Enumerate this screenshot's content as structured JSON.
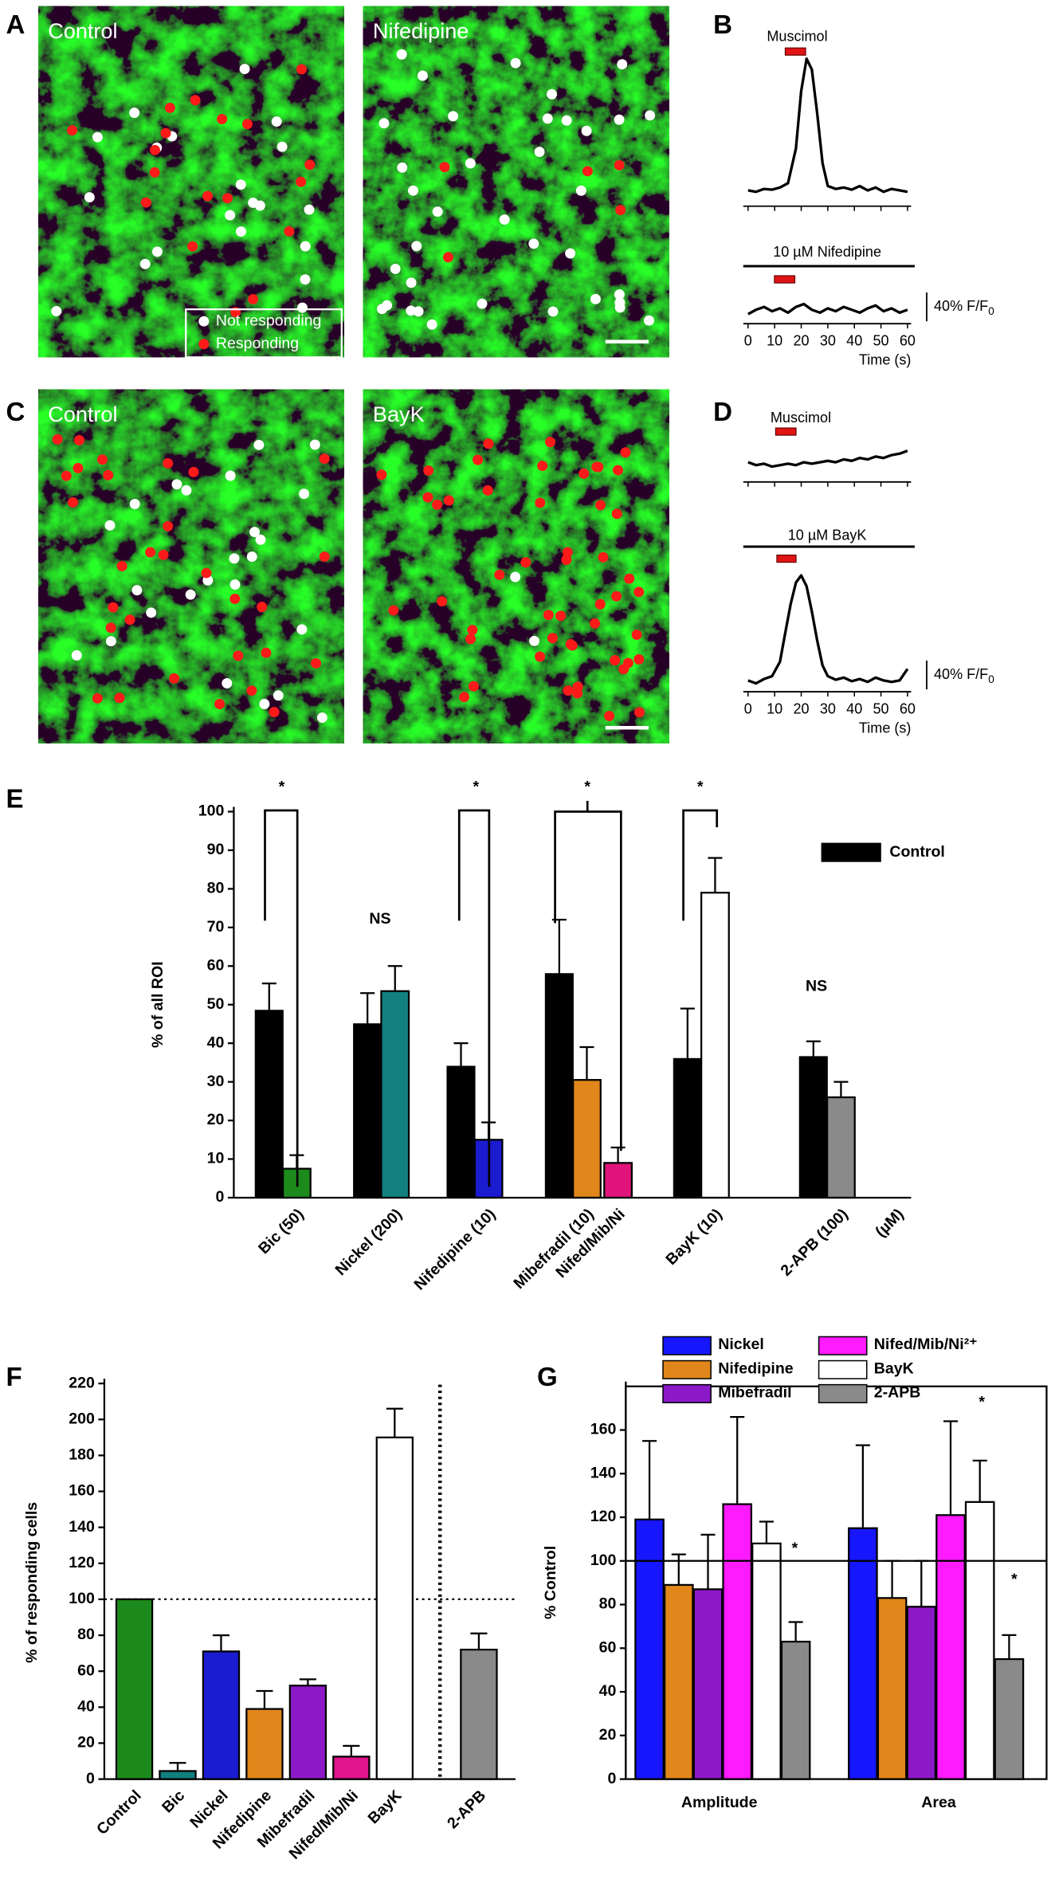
{
  "panel_labels": [
    "A",
    "B",
    "C",
    "D",
    "E",
    "F",
    "G"
  ],
  "images": [
    {
      "label": "Control"
    },
    {
      "label": "Nifedipine"
    },
    {
      "label": "Control"
    },
    {
      "label": "BayK"
    }
  ],
  "image_legend": [
    "Not responding",
    "Responding"
  ],
  "chart_data": [
    {
      "type": "line",
      "title": "Muscimol",
      "x": [
        0,
        3,
        6,
        9,
        12,
        15,
        18,
        20,
        22,
        24,
        26,
        28,
        30,
        33,
        36,
        39,
        42,
        45,
        48,
        51,
        54,
        57,
        60
      ],
      "values": [
        2,
        0,
        4,
        3,
        6,
        12,
        60,
        140,
        185,
        170,
        110,
        40,
        8,
        4,
        6,
        3,
        8,
        2,
        6,
        0,
        4,
        2,
        0
      ],
      "xlim": [
        0,
        60
      ],
      "xticks": [
        0,
        10,
        20,
        30,
        40,
        50,
        60
      ]
    },
    {
      "type": "line",
      "title": "10 µM Nifedipine",
      "xlabel": "Time (s)",
      "x": [
        0,
        3,
        6,
        9,
        12,
        15,
        18,
        21,
        24,
        27,
        30,
        33,
        36,
        39,
        42,
        45,
        48,
        51,
        54,
        57,
        60
      ],
      "values": [
        0,
        6,
        10,
        4,
        8,
        2,
        10,
        14,
        6,
        2,
        8,
        4,
        10,
        6,
        2,
        8,
        12,
        4,
        8,
        2,
        6
      ],
      "xlim": [
        0,
        60
      ],
      "xticks": [
        0,
        10,
        20,
        30,
        40,
        50,
        60
      ],
      "scale_bar": {
        "value": 40,
        "label": "40% F/F",
        "subscript": "0"
      }
    },
    {
      "type": "line",
      "title": "Muscimol",
      "x": [
        0,
        3,
        6,
        9,
        12,
        15,
        18,
        21,
        24,
        27,
        30,
        33,
        36,
        39,
        42,
        45,
        48,
        51,
        54,
        57,
        60
      ],
      "values": [
        4,
        0,
        2,
        -2,
        0,
        2,
        0,
        4,
        2,
        4,
        6,
        4,
        8,
        6,
        10,
        8,
        12,
        10,
        14,
        16,
        20
      ],
      "xlim": [
        0,
        60
      ],
      "xticks": [
        0,
        10,
        20,
        30,
        40,
        50,
        60
      ]
    },
    {
      "type": "line",
      "title": "10 µM BayK",
      "xlabel": "Time (s)",
      "x": [
        0,
        3,
        6,
        9,
        12,
        14,
        16,
        18,
        20,
        22,
        24,
        26,
        28,
        30,
        33,
        36,
        39,
        42,
        45,
        48,
        51,
        54,
        57,
        60
      ],
      "values": [
        4,
        0,
        6,
        10,
        30,
        70,
        110,
        140,
        150,
        135,
        100,
        60,
        25,
        10,
        5,
        8,
        3,
        6,
        2,
        8,
        4,
        2,
        4,
        20
      ],
      "xlim": [
        0,
        60
      ],
      "xticks": [
        0,
        10,
        20,
        30,
        40,
        50,
        60
      ],
      "scale_bar": {
        "value": 40,
        "label": "40% F/F",
        "subscript": "0"
      }
    },
    {
      "type": "bar",
      "ylabel": "% of all ROI",
      "categories": [
        "Bic (50)",
        "Nickel (200)",
        "Nifedipine (10)",
        "Mibefradil (10)",
        "Nifed/Mib/Ni",
        "BayK (10)",
        "2-APB (100)"
      ],
      "values": [
        7.5,
        53.5,
        15,
        30.5,
        9,
        79,
        26
      ],
      "errors": [
        3.5,
        6.5,
        4.5,
        8.5,
        4,
        9,
        4
      ],
      "colors": [
        "#1d8a1d",
        "#138080",
        "#1b1bd0",
        "#e0861a",
        "#e0147a",
        "#ffffff",
        "#8a8a8a"
      ],
      "series": [
        {
          "name": "Control",
          "color": "#000000",
          "values": [
            48.5,
            45,
            34,
            58,
            null,
            36,
            36.5
          ],
          "errors": [
            7,
            8,
            6,
            14,
            null,
            13,
            4
          ]
        }
      ],
      "ylim": [
        0,
        100
      ],
      "yticks": [
        0,
        10,
        20,
        30,
        40,
        50,
        60,
        70,
        80,
        90,
        100
      ],
      "annotations": [
        "*",
        "NS",
        "*",
        "*",
        "*",
        "NS"
      ],
      "x_unit": "(µM)"
    },
    {
      "type": "bar",
      "ylabel": "% of responding cells",
      "categories": [
        "Control",
        "Bic",
        "Nickel",
        "Nifedipine",
        "Mibefradil",
        "Nifed/Mib/Ni",
        "BayK",
        "2-APB"
      ],
      "values": [
        100,
        4.5,
        71,
        39,
        52,
        12.5,
        190,
        72
      ],
      "errors": [
        null,
        4.5,
        9,
        10,
        3.5,
        6,
        16,
        9
      ],
      "colors": [
        "#1d8a1d",
        "#138080",
        "#1b1bd0",
        "#e0861a",
        "#8b19c8",
        "#e0148c",
        "#ffffff",
        "#8a8a8a"
      ],
      "ylim": [
        0,
        220
      ],
      "yticks": [
        0,
        20,
        40,
        60,
        80,
        100,
        120,
        140,
        160,
        180,
        200,
        220
      ],
      "reference_line": 100
    },
    {
      "type": "grouped-bar",
      "ylabel": "% Control",
      "categories": [
        "Amplitude",
        "Area"
      ],
      "series": [
        {
          "name": "Nickel",
          "color": "#1616ff",
          "values": [
            119,
            115
          ],
          "errors": [
            36,
            38
          ]
        },
        {
          "name": "Nifedipine",
          "color": "#e0861a",
          "values": [
            89,
            83
          ],
          "errors": [
            14,
            17
          ]
        },
        {
          "name": "Mibefradil",
          "color": "#8b19c8",
          "values": [
            87,
            79
          ],
          "errors": [
            25,
            21
          ]
        },
        {
          "name": "Nifed/Mib/Ni²⁺",
          "color": "#ff1aff",
          "values": [
            126,
            121
          ],
          "errors": [
            40,
            43
          ]
        },
        {
          "name": "BayK",
          "color": "#ffffff",
          "values": [
            108,
            127
          ],
          "errors": [
            10,
            19
          ]
        },
        {
          "name": "2-APB",
          "color": "#8a8a8a",
          "values": [
            63,
            55
          ],
          "errors": [
            9,
            11
          ]
        }
      ],
      "ylim": [
        0,
        180
      ],
      "yticks": [
        0,
        20,
        40,
        60,
        80,
        100,
        120,
        140,
        160
      ],
      "reference_line": 100,
      "annotations": [
        "*",
        "*",
        "*"
      ]
    }
  ]
}
